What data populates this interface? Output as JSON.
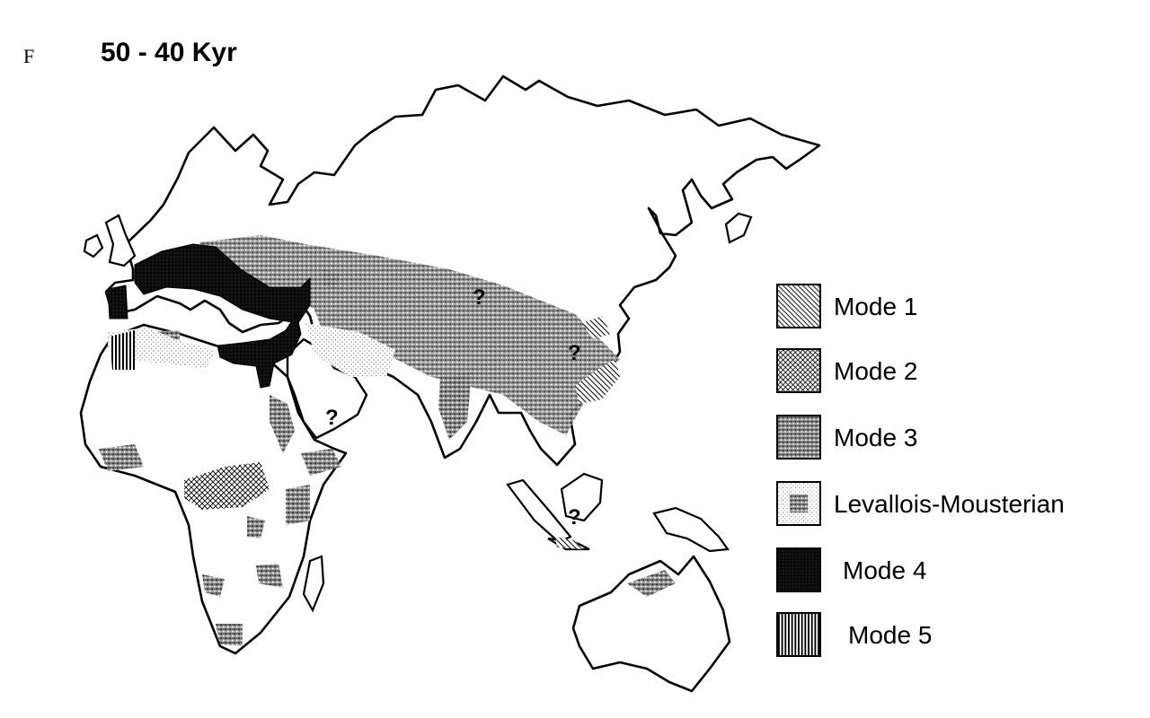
{
  "panel": {
    "letter": "F",
    "title": "50 - 40 Kyr"
  },
  "legend": {
    "items": [
      {
        "id": "mode1",
        "label": "Mode 1",
        "pattern": "diagonal-hatch"
      },
      {
        "id": "mode2",
        "label": "Mode 2",
        "pattern": "cross-hatch"
      },
      {
        "id": "mode3",
        "label": "Mode 3",
        "pattern": "dense-stipple"
      },
      {
        "id": "lev",
        "label": "Levallois-Mousterian",
        "pattern": "light-stipple-with-dark-core"
      },
      {
        "id": "mode4",
        "label": "Mode 4",
        "pattern": "solid-black"
      },
      {
        "id": "mode5",
        "label": "Mode 5",
        "pattern": "vertical-hatch"
      }
    ]
  },
  "annotations": {
    "uncertain_marker": "?"
  },
  "colors": {
    "ink": "#000000",
    "paper": "#ffffff"
  }
}
